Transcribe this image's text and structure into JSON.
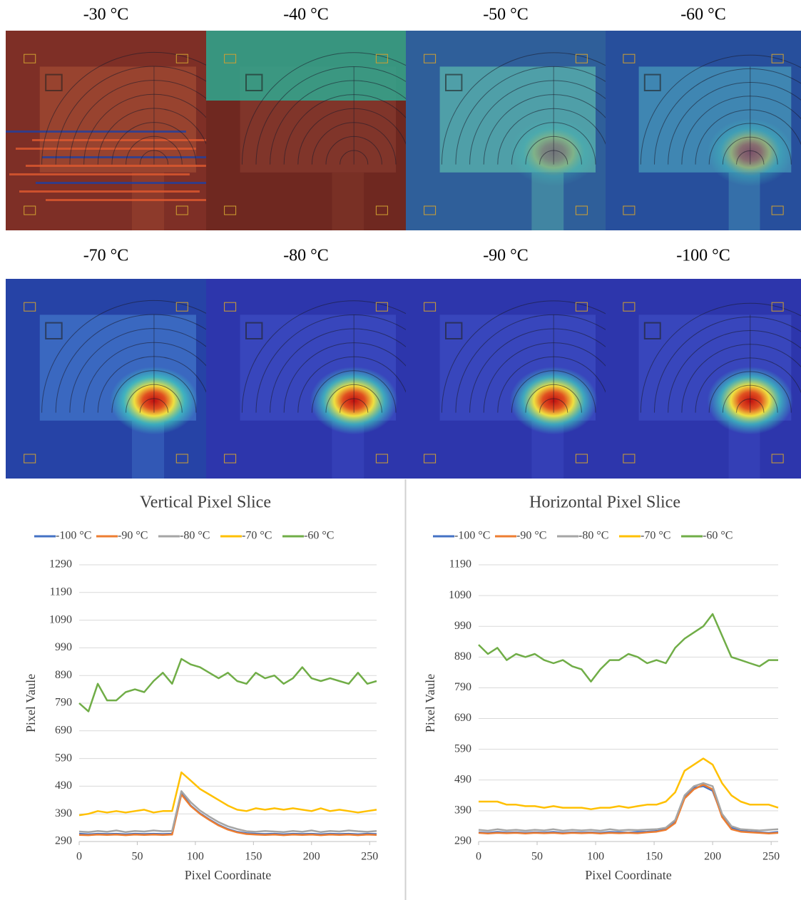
{
  "panels": [
    {
      "label": "-30 °C"
    },
    {
      "label": "-40 °C"
    },
    {
      "label": "-50 °C"
    },
    {
      "label": "-60 °C"
    },
    {
      "label": "-70 °C"
    },
    {
      "label": "-80 °C"
    },
    {
      "label": "-90 °C"
    },
    {
      "label": "-100 °C"
    }
  ],
  "chart_data": [
    {
      "type": "line",
      "title": "Vertical Pixel Slice",
      "x_label": "Pixel Coordinate",
      "y_label": "Pixel Vaule",
      "x": [
        0,
        8,
        16,
        24,
        32,
        40,
        48,
        56,
        64,
        72,
        80,
        88,
        96,
        104,
        112,
        120,
        128,
        136,
        144,
        152,
        160,
        168,
        176,
        184,
        192,
        200,
        208,
        216,
        224,
        232,
        240,
        248,
        256
      ],
      "xlim": [
        0,
        256
      ],
      "xticks": [
        0,
        50,
        100,
        150,
        200,
        250
      ],
      "ylim": [
        290,
        1290
      ],
      "yticks": [
        290,
        390,
        490,
        590,
        690,
        790,
        890,
        990,
        1090,
        1190,
        1290
      ],
      "grid": true,
      "series": [
        {
          "name": "-100 °C",
          "color": "#4472c4",
          "values": [
            318,
            316,
            318,
            317,
            318,
            316,
            318,
            317,
            318,
            317,
            318,
            465,
            420,
            392,
            370,
            350,
            335,
            325,
            320,
            318,
            317,
            318,
            316,
            318,
            317,
            318,
            316,
            318,
            317,
            318,
            316,
            318,
            317
          ]
        },
        {
          "name": "-90 °C",
          "color": "#ed7d31",
          "values": [
            314,
            313,
            315,
            314,
            315,
            313,
            315,
            314,
            315,
            314,
            315,
            460,
            418,
            390,
            368,
            348,
            333,
            323,
            317,
            315,
            314,
            315,
            313,
            315,
            314,
            315,
            313,
            315,
            314,
            315,
            313,
            315,
            314
          ]
        },
        {
          "name": "-80 °C",
          "color": "#a5a5a5",
          "values": [
            326,
            324,
            328,
            325,
            330,
            324,
            328,
            326,
            330,
            327,
            328,
            472,
            432,
            402,
            380,
            360,
            345,
            335,
            327,
            325,
            328,
            326,
            324,
            328,
            325,
            330,
            324,
            328,
            326,
            330,
            327,
            325,
            328
          ]
        },
        {
          "name": "-70 °C",
          "color": "#ffc000",
          "values": [
            385,
            390,
            400,
            395,
            400,
            395,
            400,
            405,
            395,
            400,
            400,
            540,
            510,
            480,
            460,
            440,
            420,
            405,
            400,
            410,
            405,
            410,
            405,
            410,
            405,
            400,
            410,
            400,
            405,
            400,
            395,
            400,
            405
          ]
        },
        {
          "name": "-60 °C",
          "color": "#70ad47",
          "values": [
            790,
            760,
            860,
            800,
            800,
            830,
            840,
            830,
            870,
            900,
            860,
            950,
            930,
            920,
            900,
            880,
            900,
            870,
            860,
            900,
            880,
            890,
            860,
            880,
            920,
            880,
            870,
            880,
            870,
            860,
            900,
            860,
            870
          ]
        }
      ]
    },
    {
      "type": "line",
      "title": "Horizontal Pixel Slice",
      "x_label": "Pixel Coordinate",
      "y_label": "Pixel Vaule",
      "x": [
        0,
        8,
        16,
        24,
        32,
        40,
        48,
        56,
        64,
        72,
        80,
        88,
        96,
        104,
        112,
        120,
        128,
        136,
        144,
        152,
        160,
        168,
        176,
        184,
        192,
        200,
        208,
        216,
        224,
        232,
        240,
        248,
        256
      ],
      "xlim": [
        0,
        256
      ],
      "xticks": [
        0,
        50,
        100,
        150,
        200,
        250
      ],
      "ylim": [
        290,
        1190
      ],
      "yticks": [
        290,
        390,
        490,
        590,
        690,
        790,
        890,
        990,
        1090,
        1190
      ],
      "grid": true,
      "series": [
        {
          "name": "-100 °C",
          "color": "#4472c4",
          "values": [
            320,
            318,
            321,
            319,
            320,
            318,
            320,
            319,
            321,
            318,
            320,
            319,
            320,
            318,
            321,
            320,
            319,
            321,
            322,
            324,
            330,
            355,
            435,
            465,
            470,
            455,
            375,
            335,
            325,
            322,
            320,
            318,
            321
          ]
        },
        {
          "name": "-90 °C",
          "color": "#ed7d31",
          "values": [
            318,
            316,
            318,
            317,
            318,
            316,
            318,
            317,
            318,
            316,
            318,
            317,
            318,
            316,
            318,
            317,
            318,
            317,
            320,
            322,
            328,
            350,
            430,
            460,
            475,
            460,
            370,
            330,
            322,
            320,
            318,
            316,
            318
          ]
        },
        {
          "name": "-80 °C",
          "color": "#a5a5a5",
          "values": [
            328,
            325,
            330,
            326,
            328,
            325,
            328,
            326,
            330,
            325,
            328,
            326,
            328,
            325,
            330,
            326,
            328,
            327,
            329,
            330,
            335,
            360,
            440,
            470,
            480,
            470,
            380,
            340,
            330,
            328,
            326,
            328,
            330
          ]
        },
        {
          "name": "-70 °C",
          "color": "#ffc000",
          "values": [
            420,
            420,
            420,
            410,
            410,
            405,
            405,
            400,
            405,
            400,
            400,
            400,
            395,
            400,
            400,
            405,
            400,
            405,
            410,
            410,
            420,
            450,
            520,
            540,
            560,
            540,
            480,
            440,
            420,
            410,
            410,
            410,
            400
          ]
        },
        {
          "name": "-60 °C",
          "color": "#70ad47",
          "values": [
            930,
            900,
            920,
            880,
            900,
            890,
            900,
            880,
            870,
            880,
            860,
            850,
            810,
            850,
            880,
            880,
            900,
            890,
            870,
            880,
            870,
            920,
            950,
            970,
            990,
            1030,
            960,
            890,
            880,
            870,
            860,
            880,
            880
          ]
        }
      ]
    }
  ]
}
